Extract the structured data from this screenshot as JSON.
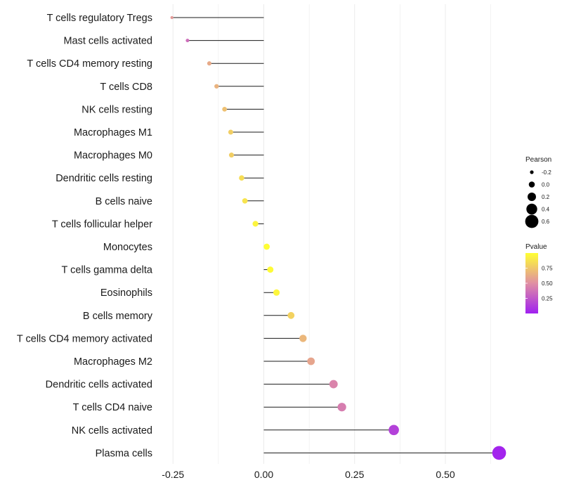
{
  "chart_data": {
    "type": "lollipop",
    "title": "",
    "xlabel": "",
    "ylabel": "",
    "xlim": [
      -0.27,
      0.68
    ],
    "grid": "vertical",
    "categories": [
      "T cells regulatory  Tregs",
      "Mast cells activated",
      "T cells CD4 memory resting",
      "T cells CD8",
      "NK cells resting",
      "Macrophages M1",
      "Macrophages M0",
      "Dendritic cells resting",
      "B cells naive",
      "T cells follicular helper",
      "Monocytes",
      "T cells gamma delta",
      "Eosinophils",
      "B cells memory",
      "T cells CD4 memory activated",
      "Macrophages M2",
      "Dendritic cells activated",
      "T cells CD4 naive",
      "NK cells activated",
      "Plasma cells"
    ],
    "values": [
      -0.253,
      -0.21,
      -0.15,
      -0.13,
      -0.108,
      -0.091,
      -0.089,
      -0.061,
      -0.052,
      -0.023,
      0.008,
      0.018,
      0.035,
      0.075,
      0.108,
      0.13,
      0.192,
      0.215,
      0.358,
      0.648
    ],
    "pvalues": [
      0.55,
      0.35,
      0.62,
      0.66,
      0.72,
      0.78,
      0.78,
      0.85,
      0.88,
      0.95,
      0.99,
      0.98,
      0.96,
      0.8,
      0.68,
      0.6,
      0.45,
      0.42,
      0.15,
      0.02
    ],
    "x_ticks": [
      -0.25,
      0.0,
      0.25,
      0.5
    ],
    "x_tick_labels": [
      "-0.25",
      "0.00",
      "0.25",
      "0.50"
    ],
    "legend_size": {
      "title": "Pearson",
      "values": [
        -0.2,
        0.0,
        0.2,
        0.4,
        0.6
      ],
      "labels": [
        "-0.2",
        "0.0",
        "0.2",
        "0.4",
        "0.6"
      ]
    },
    "legend_color": {
      "title": "Pvalue",
      "range": [
        0,
        1
      ],
      "ticks": [
        0.75,
        0.5,
        0.25
      ],
      "tick_labels": [
        "0.75",
        "0.50",
        "0.25"
      ],
      "low_color": "#a020f0",
      "mid_color": "#e08fa3",
      "high_color": "#ffff33"
    },
    "legend_placement": "right",
    "colors": {
      "stem": "#1a1a1a",
      "grid": "#ebebeb",
      "background": "#ffffff"
    }
  }
}
